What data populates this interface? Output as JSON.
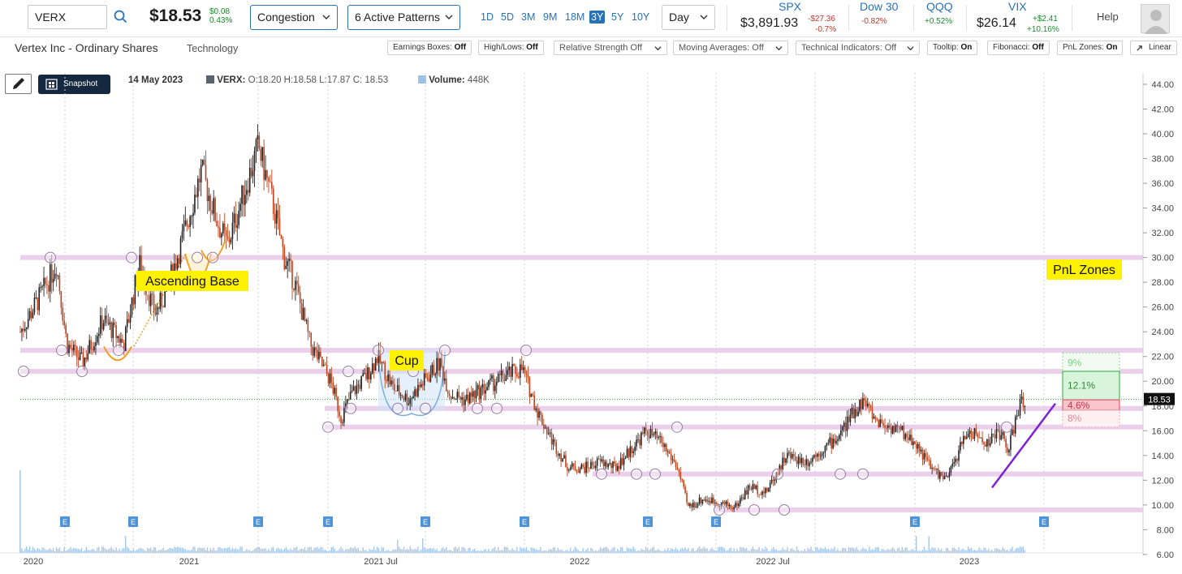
{
  "header": {
    "ticker": "VERX",
    "price": "$18.53",
    "change": "$0.08",
    "change_pct": "0.43%",
    "pattern_dropdown": "Congestion",
    "active_patterns": "6 Active Patterns",
    "ranges": [
      "1D",
      "5D",
      "3M",
      "9M",
      "18M",
      "3Y",
      "5Y",
      "10Y"
    ],
    "active_range": "3Y",
    "interval": "Day",
    "help": "Help"
  },
  "indices": [
    {
      "name": "SPX",
      "value": "$3,891.93",
      "change": "-$27.36",
      "pct": "-0.7%",
      "dir": "neg"
    },
    {
      "name": "Dow 30",
      "value": "",
      "change": "",
      "pct": "-0.82%",
      "dir": "neg"
    },
    {
      "name": "QQQ",
      "value": "",
      "change": "",
      "pct": "+0.52%",
      "dir": "pos"
    },
    {
      "name": "VIX",
      "value": "$26.14",
      "change": "+$2.41",
      "pct": "+10.16%",
      "dir": "pos"
    }
  ],
  "company": {
    "name": "Vertex Inc - Ordinary Shares",
    "sector": "Technology"
  },
  "toolbar": [
    {
      "label": "Earnings Boxes:",
      "state": "Off"
    },
    {
      "label": "High/Lows:",
      "state": "Off"
    },
    {
      "label": "Relative Strength Off",
      "state": ""
    },
    {
      "label": "Moving Averages: Off",
      "state": ""
    },
    {
      "label": "Technical Indicators: Off",
      "state": ""
    },
    {
      "label": "Tooltip:",
      "state": "On"
    },
    {
      "label": "Fibonacci:",
      "state": "Off"
    },
    {
      "label": "PnL Zones:",
      "state": "On"
    },
    {
      "label": "Linear",
      "state": ""
    }
  ],
  "legend": {
    "snapshot": "Snapshot",
    "date": "14 May 2023",
    "symbol": "VERX:",
    "ohlc": "O:18.20 H:18.58 L:17.87 C: 18.53",
    "volume_label": "Volume:",
    "volume": "448K"
  },
  "colors": {
    "accent": "#2a72b8",
    "up": "#222222",
    "down": "#c0451e",
    "band": "#e6c8e6",
    "trend": "#7b22d4",
    "pnl_up": "#2eaa3c",
    "pnl_down": "#e8485a"
  },
  "chart_data": {
    "type": "candlestick",
    "y_ticks": [
      "44.00",
      "42.00",
      "40.00",
      "38.00",
      "36.00",
      "34.00",
      "32.00",
      "30.00",
      "28.00",
      "26.00",
      "24.00",
      "22.00",
      "20.00",
      "18.00",
      "16.00",
      "14.00",
      "12.00",
      "10.00",
      "8.00",
      "6.00"
    ],
    "ylim": [
      6,
      44
    ],
    "x_ticks": [
      "2020",
      "2021",
      "2021 Jul",
      "2022",
      "2022 Jul",
      "2023"
    ],
    "last_price_label": "18.53",
    "last_price": 18.53,
    "support_resistance_levels": [
      30.0,
      22.5,
      20.8,
      17.8,
      16.3,
      12.5,
      9.6
    ],
    "annotations": [
      {
        "label": "Ascending Base"
      },
      {
        "label": "Cup"
      },
      {
        "label": "PnL Zones"
      }
    ],
    "pnl_zones": [
      "9%",
      "12.1%",
      "4.6%",
      "8%"
    ],
    "earnings_marker": "E",
    "price_path": [
      [
        0,
        24
      ],
      [
        0.02,
        27
      ],
      [
        0.035,
        29.5
      ],
      [
        0.045,
        23
      ],
      [
        0.06,
        21.5
      ],
      [
        0.08,
        25
      ],
      [
        0.1,
        23
      ],
      [
        0.115,
        29.5
      ],
      [
        0.13,
        25.5
      ],
      [
        0.14,
        27
      ],
      [
        0.155,
        31
      ],
      [
        0.165,
        34
      ],
      [
        0.175,
        37
      ],
      [
        0.19,
        33
      ],
      [
        0.2,
        31
      ],
      [
        0.215,
        35
      ],
      [
        0.23,
        39
      ],
      [
        0.245,
        34
      ],
      [
        0.255,
        30
      ],
      [
        0.265,
        28
      ],
      [
        0.28,
        23
      ],
      [
        0.3,
        20
      ],
      [
        0.31,
        17
      ],
      [
        0.32,
        19
      ],
      [
        0.335,
        20.5
      ],
      [
        0.345,
        22
      ],
      [
        0.36,
        19.5
      ],
      [
        0.375,
        18.5
      ],
      [
        0.39,
        20
      ],
      [
        0.405,
        21.5
      ],
      [
        0.415,
        19
      ],
      [
        0.43,
        18.5
      ],
      [
        0.45,
        19.5
      ],
      [
        0.47,
        20.5
      ],
      [
        0.485,
        21
      ],
      [
        0.5,
        17.5
      ],
      [
        0.515,
        15
      ],
      [
        0.53,
        13
      ],
      [
        0.545,
        13
      ],
      [
        0.56,
        13.5
      ],
      [
        0.575,
        13
      ],
      [
        0.59,
        14.5
      ],
      [
        0.605,
        16
      ],
      [
        0.62,
        15
      ],
      [
        0.635,
        13
      ],
      [
        0.645,
        9.8
      ],
      [
        0.66,
        10.5
      ],
      [
        0.675,
        10.2
      ],
      [
        0.69,
        9.8
      ],
      [
        0.705,
        11.5
      ],
      [
        0.72,
        11
      ],
      [
        0.74,
        14
      ],
      [
        0.76,
        13.5
      ],
      [
        0.775,
        14.5
      ],
      [
        0.79,
        15.5
      ],
      [
        0.805,
        17.5
      ],
      [
        0.815,
        18.5
      ],
      [
        0.825,
        17
      ],
      [
        0.835,
        16.5
      ],
      [
        0.85,
        16
      ],
      [
        0.865,
        15
      ],
      [
        0.88,
        13
      ],
      [
        0.895,
        12
      ],
      [
        0.905,
        14
      ],
      [
        0.915,
        16
      ],
      [
        0.925,
        15.5
      ],
      [
        0.935,
        15
      ],
      [
        0.945,
        16
      ],
      [
        0.955,
        14.5
      ],
      [
        0.965,
        18
      ],
      [
        0.972,
        18.5
      ]
    ]
  }
}
